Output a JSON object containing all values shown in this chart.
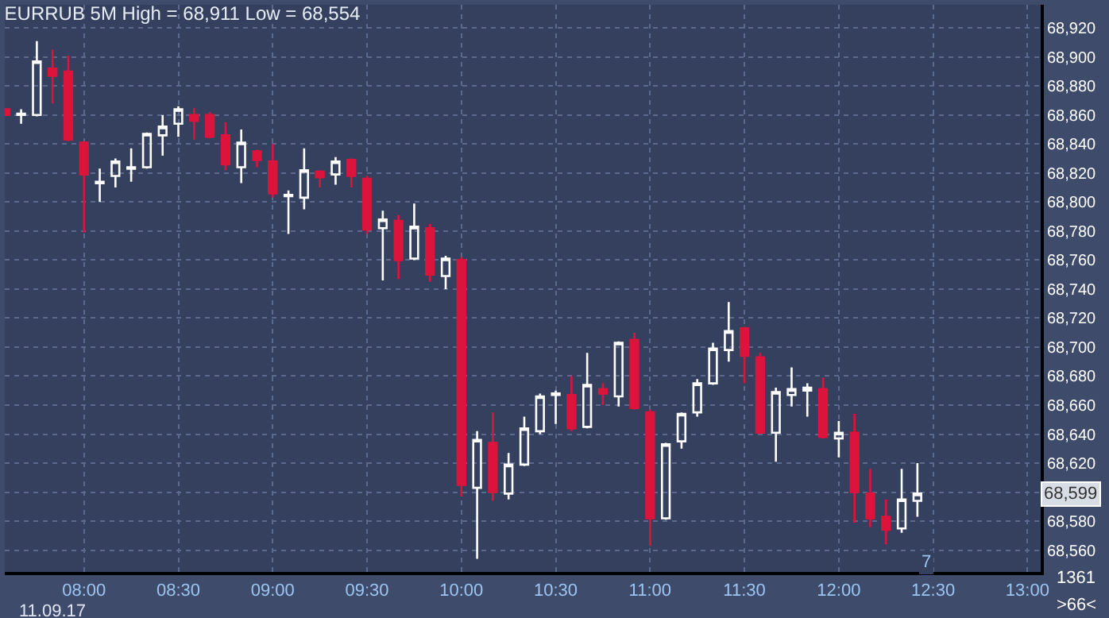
{
  "chart_data": {
    "type": "candlestick",
    "title": "EURRUB 5M High = 68,911 Low = 68,554",
    "x": [
      7.583333,
      7.666667,
      7.75,
      7.833333,
      7.916667,
      8,
      8.083333,
      8.166667,
      8.25,
      8.333333,
      8.416667,
      8.5,
      8.583333,
      8.666667,
      8.75,
      8.833333,
      8.916667,
      9,
      9.083333,
      9.166667,
      9.25,
      9.333333,
      9.416667,
      9.5,
      9.583333,
      9.666667,
      9.75,
      9.833333,
      9.916667,
      10,
      10.083333,
      10.166667,
      10.25,
      10.333333,
      10.416667,
      10.5,
      10.583333,
      10.666667,
      10.75,
      10.833333,
      10.916667,
      11,
      11.083333,
      11.166667,
      11.25,
      11.333333,
      11.416667,
      11.5,
      11.583333,
      11.666667,
      11.75,
      11.833333,
      11.916667,
      12,
      12.083333,
      12.166667,
      12.25,
      12.333333,
      12.416667
    ],
    "ohlc": [
      [
        68864,
        68864,
        68860,
        68860
      ],
      [
        68860,
        68864,
        68854,
        68861
      ],
      [
        68860,
        68911,
        68859,
        68897
      ],
      [
        68892,
        68905,
        68868,
        68887
      ],
      [
        68890,
        68901,
        68842,
        68843
      ],
      [
        68841,
        68842,
        68779,
        68819
      ],
      [
        68813,
        68823,
        68800,
        68814
      ],
      [
        68818,
        68830,
        68810,
        68828
      ],
      [
        68823,
        68837,
        68814,
        68824
      ],
      [
        68824,
        68848,
        68823,
        68847
      ],
      [
        68846,
        68860,
        68832,
        68852
      ],
      [
        68854,
        68866,
        68845,
        68864
      ],
      [
        68860,
        68865,
        68843,
        68856
      ],
      [
        68860,
        68862,
        68844,
        68845
      ],
      [
        68846,
        68855,
        68822,
        68826
      ],
      [
        68824,
        68850,
        68813,
        68841
      ],
      [
        68835,
        68836,
        68824,
        68829
      ],
      [
        68828,
        68840,
        68803,
        68806
      ],
      [
        68804,
        68808,
        68778,
        68805
      ],
      [
        68803,
        68837,
        68795,
        68822
      ],
      [
        68821,
        68822,
        68810,
        68817
      ],
      [
        68819,
        68831,
        68812,
        68828
      ],
      [
        68829,
        68830,
        68810,
        68818
      ],
      [
        68816,
        68818,
        68778,
        68781
      ],
      [
        68782,
        68794,
        68746,
        68788
      ],
      [
        68787,
        68791,
        68747,
        68760
      ],
      [
        68761,
        68799,
        68760,
        68783
      ],
      [
        68782,
        68785,
        68745,
        68750
      ],
      [
        68749,
        68763,
        68740,
        68761
      ],
      [
        68760,
        68762,
        68597,
        68605
      ],
      [
        68603,
        68642,
        68554,
        68636
      ],
      [
        68634,
        68655,
        68594,
        68600
      ],
      [
        68599,
        68627,
        68595,
        68619
      ],
      [
        68619,
        68652,
        68618,
        68644
      ],
      [
        68642,
        68668,
        68640,
        68666
      ],
      [
        68667,
        68670,
        68647,
        68668
      ],
      [
        68667,
        68680,
        68642,
        68644
      ],
      [
        68645,
        68696,
        68644,
        68674
      ],
      [
        68671,
        68675,
        68660,
        68668
      ],
      [
        68666,
        68704,
        68659,
        68703
      ],
      [
        68705,
        68710,
        68657,
        68658
      ],
      [
        68655,
        68657,
        68563,
        68582
      ],
      [
        68582,
        68634,
        68581,
        68633
      ],
      [
        68635,
        68655,
        68630,
        68654
      ],
      [
        68655,
        68678,
        68652,
        68675
      ],
      [
        68675,
        68703,
        68674,
        68699
      ],
      [
        68698,
        68731,
        68690,
        68711
      ],
      [
        68713,
        68714,
        68675,
        68694
      ],
      [
        68693,
        68696,
        68640,
        68641
      ],
      [
        68641,
        68672,
        68621,
        68669
      ],
      [
        68667,
        68686,
        68659,
        68671
      ],
      [
        68670,
        68675,
        68652,
        68672
      ],
      [
        68671,
        68679,
        68637,
        68638
      ],
      [
        68637,
        68649,
        68624,
        68641
      ],
      [
        68641,
        68654,
        68579,
        68600
      ],
      [
        68599,
        68616,
        68576,
        68582
      ],
      [
        68583,
        68595,
        68564,
        68574
      ],
      [
        68575,
        68616,
        68572,
        68595
      ],
      [
        68594,
        68620,
        68583,
        68599
      ]
    ],
    "colors": [
      "#dc143c",
      "#ffffff",
      "#ffffff",
      "#dc143c",
      "#dc143c",
      "#dc143c",
      "#ffffff",
      "#ffffff",
      "#ffffff",
      "#ffffff",
      "#ffffff",
      "#ffffff",
      "#dc143c",
      "#dc143c",
      "#dc143c",
      "#ffffff",
      "#dc143c",
      "#dc143c",
      "#ffffff",
      "#ffffff",
      "#dc143c",
      "#ffffff",
      "#dc143c",
      "#dc143c",
      "#ffffff",
      "#dc143c",
      "#ffffff",
      "#dc143c",
      "#ffffff",
      "#dc143c",
      "#ffffff",
      "#dc143c",
      "#ffffff",
      "#ffffff",
      "#ffffff",
      "#ffffff",
      "#dc143c",
      "#ffffff",
      "#dc143c",
      "#ffffff",
      "#dc143c",
      "#dc143c",
      "#ffffff",
      "#ffffff",
      "#ffffff",
      "#ffffff",
      "#ffffff",
      "#dc143c",
      "#dc143c",
      "#ffffff",
      "#ffffff",
      "#ffffff",
      "#dc143c",
      "#ffffff",
      "#dc143c",
      "#dc143c",
      "#dc143c",
      "#ffffff",
      "#ffffff"
    ],
    "xlim": [
      7.58,
      13.07
    ],
    "xticks": [
      {
        "value": 8,
        "label": "08:00"
      },
      {
        "value": 8.5,
        "label": "08:30"
      },
      {
        "value": 9,
        "label": "09:00"
      },
      {
        "value": 9.5,
        "label": "09:30"
      },
      {
        "value": 10,
        "label": "10:00"
      },
      {
        "value": 10.5,
        "label": "10:30"
      },
      {
        "value": 11,
        "label": "11:00"
      },
      {
        "value": 11.5,
        "label": "11:30"
      },
      {
        "value": 12,
        "label": "12:00"
      },
      {
        "value": 12.5,
        "label": "12:30"
      },
      {
        "value": 13,
        "label": "13:00"
      }
    ],
    "ylim": [
      68545,
      68936
    ],
    "yticks": [
      {
        "value": 68560,
        "label": "68,560"
      },
      {
        "value": 68580,
        "label": "68,580"
      },
      {
        "value": 68600,
        "label": null
      },
      {
        "value": 68620,
        "label": "68,620"
      },
      {
        "value": 68640,
        "label": "68,640"
      },
      {
        "value": 68660,
        "label": "68,660"
      },
      {
        "value": 68680,
        "label": "68,680"
      },
      {
        "value": 68700,
        "label": "68,700"
      },
      {
        "value": 68720,
        "label": "68,720"
      },
      {
        "value": 68740,
        "label": "68,740"
      },
      {
        "value": 68760,
        "label": "68,760"
      },
      {
        "value": 68780,
        "label": "68,780"
      },
      {
        "value": 68800,
        "label": "68,800"
      },
      {
        "value": 68820,
        "label": "68,820"
      },
      {
        "value": 68840,
        "label": "68,840"
      },
      {
        "value": 68860,
        "label": "68,860"
      },
      {
        "value": 68880,
        "label": "68,880"
      },
      {
        "value": 68900,
        "label": "68,900"
      },
      {
        "value": 68920,
        "label": "68,920"
      }
    ],
    "grid": true,
    "annotations": [
      "11.09.17",
      "7",
      "1361",
      ">66<",
      {
        "text": "68,599",
        "y": 68599
      }
    ]
  }
}
